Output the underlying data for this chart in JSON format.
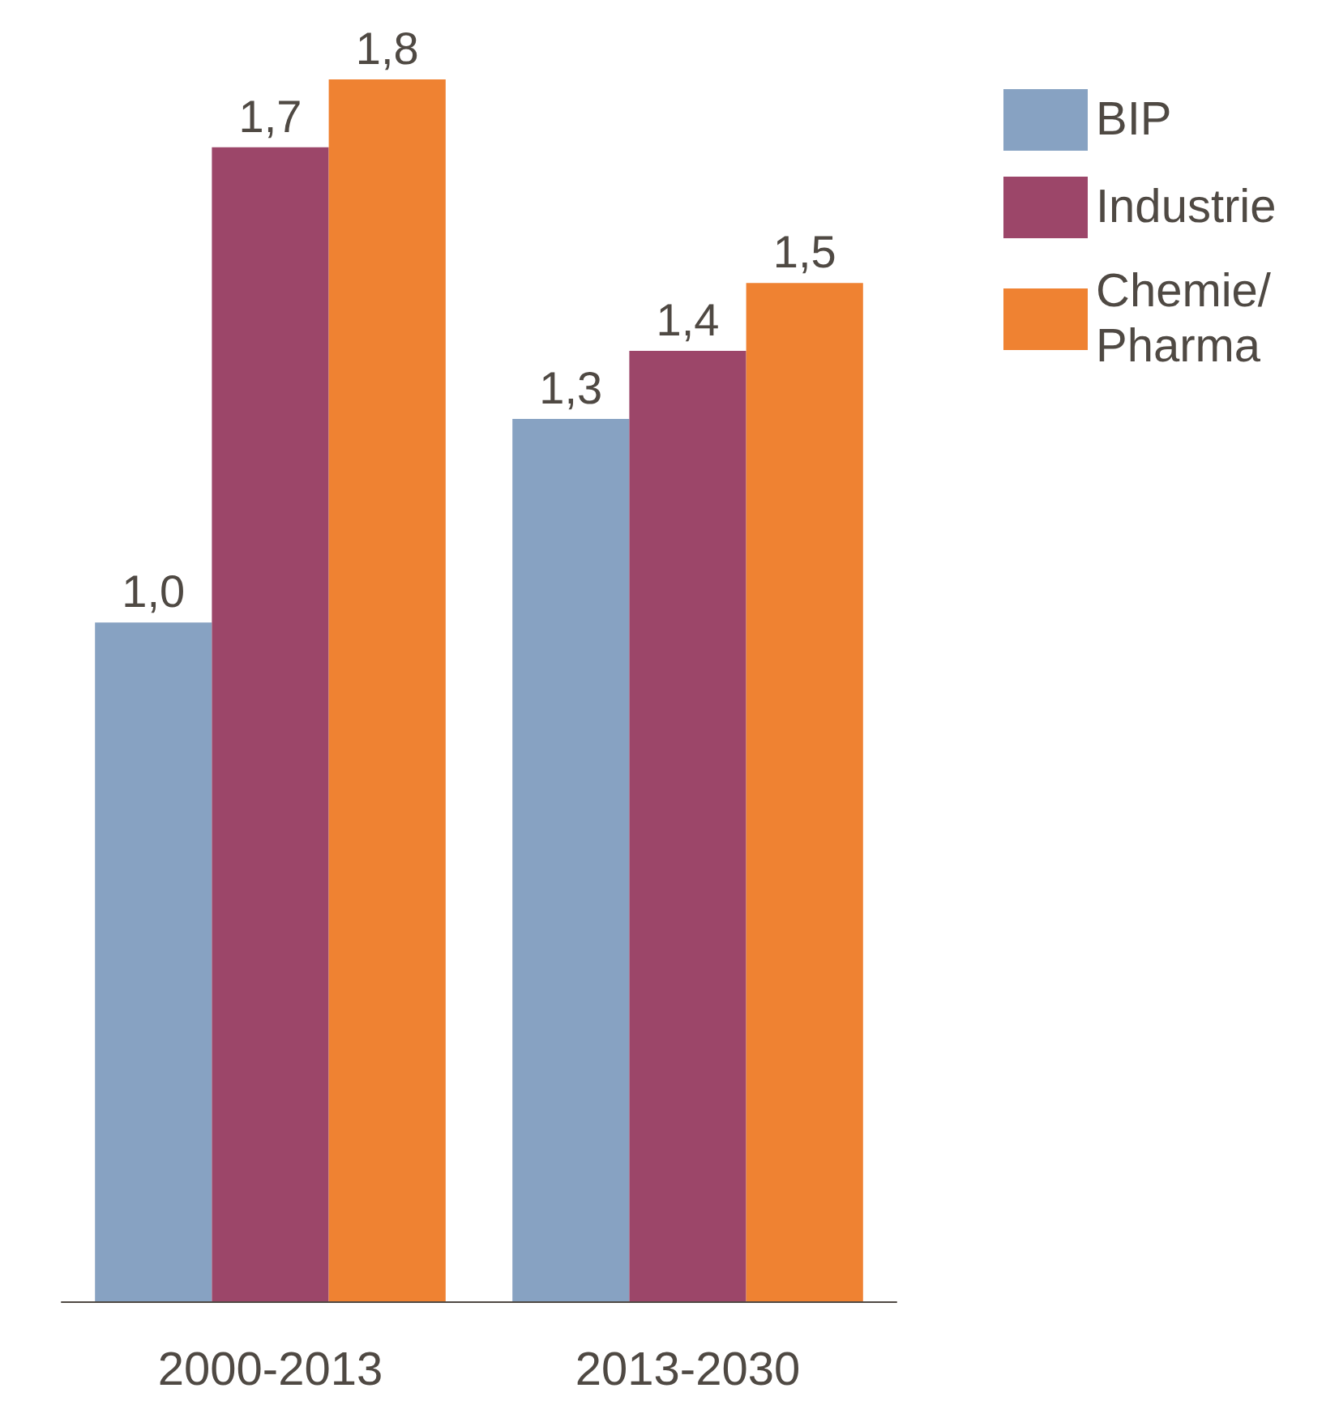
{
  "chart_data": {
    "type": "bar",
    "categories": [
      "2000-2013",
      "2013-2030"
    ],
    "series": [
      {
        "name": "BIP",
        "color": "#87a2c2",
        "values": [
          1.0,
          1.3
        ],
        "value_labels": [
          "1,0",
          "1,3"
        ]
      },
      {
        "name": "Industrie",
        "color": "#9c4669",
        "values": [
          1.7,
          1.4
        ],
        "value_labels": [
          "1,7",
          "1,4"
        ]
      },
      {
        "name": "Chemie/Pharma",
        "color": "#ef8232",
        "values": [
          1.8,
          1.5
        ],
        "value_labels": [
          "1,8",
          "1,5"
        ]
      }
    ],
    "legend": "top right"
  }
}
